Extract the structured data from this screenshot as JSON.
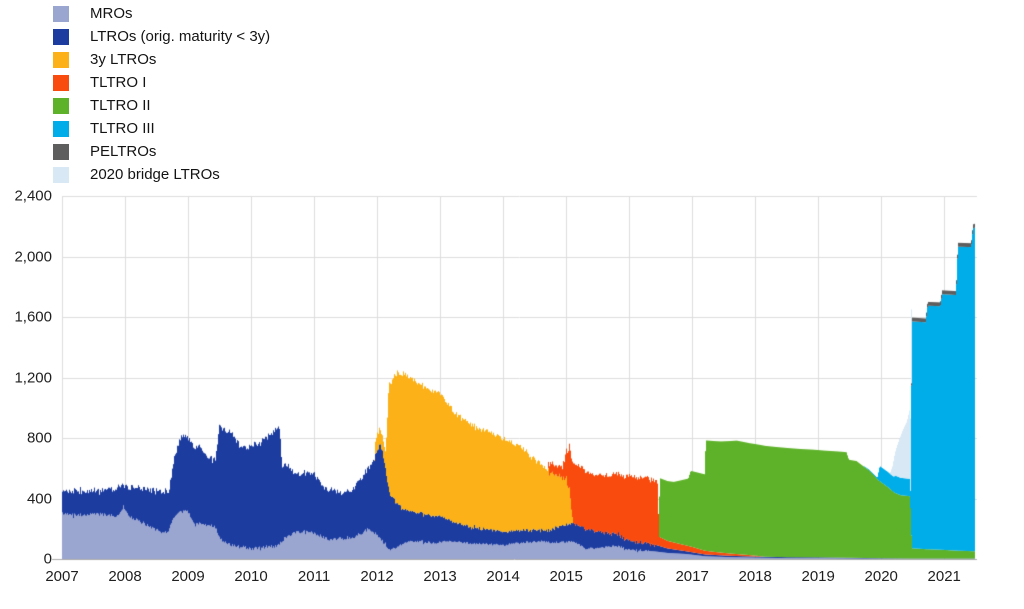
{
  "chart_data": {
    "type": "area",
    "stacked": true,
    "title": "",
    "xlabel": "",
    "ylabel": "",
    "x_range": [
      2007,
      2021.52
    ],
    "data_end": 2021.48,
    "ylim": [
      0,
      2400
    ],
    "y_ticks": [
      {
        "value": 0,
        "label": "0"
      },
      {
        "value": 400,
        "label": "400"
      },
      {
        "value": 800,
        "label": "800"
      },
      {
        "value": 1200,
        "label": "1,200"
      },
      {
        "value": 1600,
        "label": "1,600"
      },
      {
        "value": 2000,
        "label": "2,000"
      },
      {
        "value": 2400,
        "label": "2,400"
      }
    ],
    "x_ticks": [
      {
        "value": 2007,
        "label": "2007"
      },
      {
        "value": 2008,
        "label": "2008"
      },
      {
        "value": 2009,
        "label": "2009"
      },
      {
        "value": 2010,
        "label": "2010"
      },
      {
        "value": 2011,
        "label": "2011"
      },
      {
        "value": 2012,
        "label": "2012"
      },
      {
        "value": 2013,
        "label": "2013"
      },
      {
        "value": 2014,
        "label": "2014"
      },
      {
        "value": 2015,
        "label": "2015"
      },
      {
        "value": 2016,
        "label": "2016"
      },
      {
        "value": 2017,
        "label": "2017"
      },
      {
        "value": 2018,
        "label": "2018"
      },
      {
        "value": 2019,
        "label": "2019"
      },
      {
        "value": 2020,
        "label": "2020"
      },
      {
        "value": 2021,
        "label": "2021"
      }
    ],
    "grid": {
      "horizontal": true,
      "vertical": true,
      "color": "#dcdcdc",
      "axis_line_color": "#ababab"
    },
    "legend_position": "top-left",
    "series": [
      {
        "name": "MROs",
        "key": "mro",
        "color": "#9aa5d0",
        "noise": [
          [
            2007,
            2012.1,
            11
          ],
          [
            2012.1,
            2016.3,
            7
          ]
        ],
        "points": [
          [
            2007.0,
            300
          ],
          [
            2007.3,
            290
          ],
          [
            2007.6,
            295
          ],
          [
            2007.9,
            285
          ],
          [
            2007.97,
            345
          ],
          [
            2008.05,
            280
          ],
          [
            2008.3,
            235
          ],
          [
            2008.55,
            180
          ],
          [
            2008.68,
            170
          ],
          [
            2008.75,
            265
          ],
          [
            2008.85,
            310
          ],
          [
            2008.98,
            315
          ],
          [
            2009.1,
            235
          ],
          [
            2009.3,
            225
          ],
          [
            2009.42,
            220
          ],
          [
            2009.5,
            130
          ],
          [
            2009.65,
            95
          ],
          [
            2009.8,
            80
          ],
          [
            2010.0,
            70
          ],
          [
            2010.2,
            78
          ],
          [
            2010.42,
            85
          ],
          [
            2010.52,
            135
          ],
          [
            2010.7,
            175
          ],
          [
            2010.9,
            185
          ],
          [
            2011.05,
            160
          ],
          [
            2011.25,
            125
          ],
          [
            2011.45,
            135
          ],
          [
            2011.65,
            150
          ],
          [
            2011.85,
            195
          ],
          [
            2011.95,
            175
          ],
          [
            2012.05,
            130
          ],
          [
            2012.2,
            55
          ],
          [
            2012.35,
            90
          ],
          [
            2012.5,
            120
          ],
          [
            2012.7,
            115
          ],
          [
            2012.9,
            105
          ],
          [
            2013.1,
            120
          ],
          [
            2013.4,
            105
          ],
          [
            2013.7,
            98
          ],
          [
            2014.0,
            92
          ],
          [
            2014.3,
            108
          ],
          [
            2014.6,
            115
          ],
          [
            2014.85,
            105
          ],
          [
            2015.1,
            118
          ],
          [
            2015.3,
            70
          ],
          [
            2015.55,
            75
          ],
          [
            2015.8,
            85
          ],
          [
            2016.0,
            62
          ],
          [
            2016.2,
            57
          ],
          [
            2016.4,
            50
          ],
          [
            2016.6,
            40
          ],
          [
            2016.9,
            33
          ],
          [
            2017.2,
            18
          ],
          [
            2017.6,
            12
          ],
          [
            2018.0,
            9
          ],
          [
            2018.5,
            6
          ],
          [
            2019.0,
            6
          ],
          [
            2019.5,
            4
          ],
          [
            2020.0,
            2
          ],
          [
            2020.47,
            1
          ],
          [
            2021.0,
            1
          ],
          [
            2021.48,
            1
          ]
        ]
      },
      {
        "name": "LTROs (orig. maturity < 3y)",
        "key": "ltro",
        "color": "#1c3ca0",
        "noise": [
          [
            2007,
            2009.6,
            16
          ],
          [
            2009.6,
            2012.3,
            14
          ],
          [
            2012.3,
            2016.4,
            7
          ]
        ],
        "points": [
          [
            2007.0,
            145
          ],
          [
            2007.3,
            160
          ],
          [
            2007.6,
            150
          ],
          [
            2007.9,
            190
          ],
          [
            2007.97,
            145
          ],
          [
            2008.1,
            210
          ],
          [
            2008.3,
            230
          ],
          [
            2008.55,
            265
          ],
          [
            2008.7,
            270
          ],
          [
            2008.78,
            395
          ],
          [
            2008.88,
            490
          ],
          [
            2009.0,
            495
          ],
          [
            2009.15,
            515
          ],
          [
            2009.3,
            450
          ],
          [
            2009.44,
            460
          ],
          [
            2009.49,
            750
          ],
          [
            2009.55,
            745
          ],
          [
            2009.7,
            735
          ],
          [
            2009.85,
            655
          ],
          [
            2010.0,
            680
          ],
          [
            2010.15,
            705
          ],
          [
            2010.3,
            740
          ],
          [
            2010.44,
            780
          ],
          [
            2010.49,
            490
          ],
          [
            2010.6,
            455
          ],
          [
            2010.68,
            385
          ],
          [
            2010.85,
            390
          ],
          [
            2011.0,
            395
          ],
          [
            2011.15,
            330
          ],
          [
            2011.3,
            330
          ],
          [
            2011.45,
            295
          ],
          [
            2011.6,
            320
          ],
          [
            2011.75,
            370
          ],
          [
            2011.88,
            415
          ],
          [
            2011.96,
            505
          ],
          [
            2012.05,
            640
          ],
          [
            2012.15,
            450
          ],
          [
            2012.2,
            370
          ],
          [
            2012.25,
            340
          ],
          [
            2012.4,
            225
          ],
          [
            2012.55,
            195
          ],
          [
            2012.75,
            185
          ],
          [
            2012.95,
            180
          ],
          [
            2013.2,
            130
          ],
          [
            2013.5,
            105
          ],
          [
            2013.8,
            95
          ],
          [
            2014.1,
            85
          ],
          [
            2014.4,
            80
          ],
          [
            2014.7,
            75
          ],
          [
            2014.9,
            110
          ],
          [
            2015.1,
            120
          ],
          [
            2015.3,
            130
          ],
          [
            2015.5,
            110
          ],
          [
            2015.7,
            85
          ],
          [
            2015.9,
            68
          ],
          [
            2016.1,
            55
          ],
          [
            2016.4,
            45
          ],
          [
            2016.6,
            30
          ],
          [
            2016.9,
            18
          ],
          [
            2017.2,
            12
          ],
          [
            2017.6,
            9
          ],
          [
            2018.0,
            7
          ],
          [
            2018.5,
            6
          ],
          [
            2019.0,
            5
          ],
          [
            2019.5,
            4
          ],
          [
            2020.0,
            3
          ],
          [
            2020.47,
            2
          ],
          [
            2021.0,
            2
          ],
          [
            2021.48,
            2
          ]
        ]
      },
      {
        "name": "3y LTROs",
        "key": "ltro3y",
        "color": "#fbb117",
        "noise": [
          [
            2011.97,
            2015.1,
            14
          ]
        ],
        "points": [
          [
            2011.95,
            0
          ],
          [
            2011.97,
            95
          ],
          [
            2012.05,
            100
          ],
          [
            2012.13,
            105
          ],
          [
            2012.18,
            700
          ],
          [
            2012.3,
            860
          ],
          [
            2012.45,
            895
          ],
          [
            2012.55,
            880
          ],
          [
            2012.65,
            855
          ],
          [
            2012.8,
            835
          ],
          [
            2012.95,
            820
          ],
          [
            2013.05,
            800
          ],
          [
            2013.12,
            760
          ],
          [
            2013.25,
            720
          ],
          [
            2013.4,
            695
          ],
          [
            2013.55,
            675
          ],
          [
            2013.7,
            650
          ],
          [
            2013.85,
            630
          ],
          [
            2014.0,
            610
          ],
          [
            2014.15,
            580
          ],
          [
            2014.3,
            545
          ],
          [
            2014.45,
            480
          ],
          [
            2014.6,
            430
          ],
          [
            2014.75,
            375
          ],
          [
            2014.9,
            330
          ],
          [
            2015.0,
            300
          ],
          [
            2015.05,
            220
          ],
          [
            2015.1,
            0
          ]
        ]
      },
      {
        "name": "TLTRO I",
        "key": "tltro1",
        "color": "#f94b0e",
        "noise": [
          [
            2014.72,
            2016.45,
            9
          ]
        ],
        "points": [
          [
            2014.7,
            0
          ],
          [
            2014.72,
            65
          ],
          [
            2014.93,
            65
          ],
          [
            2014.97,
            130
          ],
          [
            2015.1,
            390
          ],
          [
            2015.2,
            400
          ],
          [
            2015.4,
            370
          ],
          [
            2015.55,
            375
          ],
          [
            2015.7,
            380
          ],
          [
            2015.74,
            400
          ],
          [
            2015.9,
            405
          ],
          [
            2016.0,
            430
          ],
          [
            2016.2,
            430
          ],
          [
            2016.44,
            430
          ],
          [
            2016.47,
            60
          ],
          [
            2016.6,
            50
          ],
          [
            2016.8,
            42
          ],
          [
            2017.0,
            35
          ],
          [
            2017.18,
            25
          ],
          [
            2017.35,
            20
          ],
          [
            2017.6,
            15
          ],
          [
            2017.85,
            10
          ],
          [
            2018.0,
            6
          ],
          [
            2018.15,
            0
          ]
        ]
      },
      {
        "name": "TLTRO II",
        "key": "tltro2",
        "color": "#5eb229",
        "noise": [],
        "points": [
          [
            2016.46,
            0
          ],
          [
            2016.48,
            390
          ],
          [
            2016.7,
            400
          ],
          [
            2016.93,
            445
          ],
          [
            2016.97,
            500
          ],
          [
            2017.19,
            505
          ],
          [
            2017.21,
            730
          ],
          [
            2017.45,
            735
          ],
          [
            2017.7,
            750
          ],
          [
            2017.9,
            740
          ],
          [
            2018.1,
            735
          ],
          [
            2018.3,
            728
          ],
          [
            2018.5,
            722
          ],
          [
            2018.7,
            716
          ],
          [
            2018.9,
            712
          ],
          [
            2019.1,
            706
          ],
          [
            2019.3,
            702
          ],
          [
            2019.44,
            698
          ],
          [
            2019.48,
            648
          ],
          [
            2019.6,
            640
          ],
          [
            2019.73,
            600
          ],
          [
            2019.8,
            580
          ],
          [
            2019.95,
            515
          ],
          [
            2020.1,
            470
          ],
          [
            2020.2,
            435
          ],
          [
            2020.3,
            418
          ],
          [
            2020.45,
            412
          ],
          [
            2020.48,
            68
          ],
          [
            2020.7,
            62
          ],
          [
            2020.95,
            58
          ],
          [
            2021.2,
            52
          ],
          [
            2021.35,
            50
          ],
          [
            2021.48,
            48
          ]
        ]
      },
      {
        "name": "TLTRO III",
        "key": "tltro3",
        "color": "#00ade9",
        "noise": [],
        "points": [
          [
            2019.7,
            0
          ],
          [
            2019.73,
            4
          ],
          [
            2019.93,
            8
          ],
          [
            2019.97,
            100
          ],
          [
            2020.18,
            100
          ],
          [
            2020.22,
            115
          ],
          [
            2020.46,
            115
          ],
          [
            2020.48,
            1500
          ],
          [
            2020.7,
            1500
          ],
          [
            2020.73,
            1610
          ],
          [
            2020.93,
            1610
          ],
          [
            2020.96,
            1690
          ],
          [
            2021.18,
            1690
          ],
          [
            2021.21,
            2010
          ],
          [
            2021.42,
            2010
          ],
          [
            2021.45,
            2135
          ],
          [
            2021.48,
            2140
          ]
        ]
      },
      {
        "name": "PELTROs",
        "key": "peltro",
        "color": "#5e5e5e",
        "noise": [],
        "points": [
          [
            2020.46,
            0
          ],
          [
            2020.48,
            25
          ],
          [
            2021.48,
            26
          ]
        ]
      },
      {
        "name": "2020 bridge LTROs",
        "key": "bridge",
        "color": "#d8e8f5",
        "noise": [],
        "points": [
          [
            2020.13,
            0
          ],
          [
            2020.17,
            60
          ],
          [
            2020.2,
            130
          ],
          [
            2020.24,
            195
          ],
          [
            2020.28,
            250
          ],
          [
            2020.32,
            300
          ],
          [
            2020.36,
            340
          ],
          [
            2020.4,
            375
          ],
          [
            2020.44,
            450
          ],
          [
            2020.46,
            480
          ],
          [
            2020.475,
            490
          ],
          [
            2020.48,
            0
          ]
        ]
      }
    ]
  }
}
